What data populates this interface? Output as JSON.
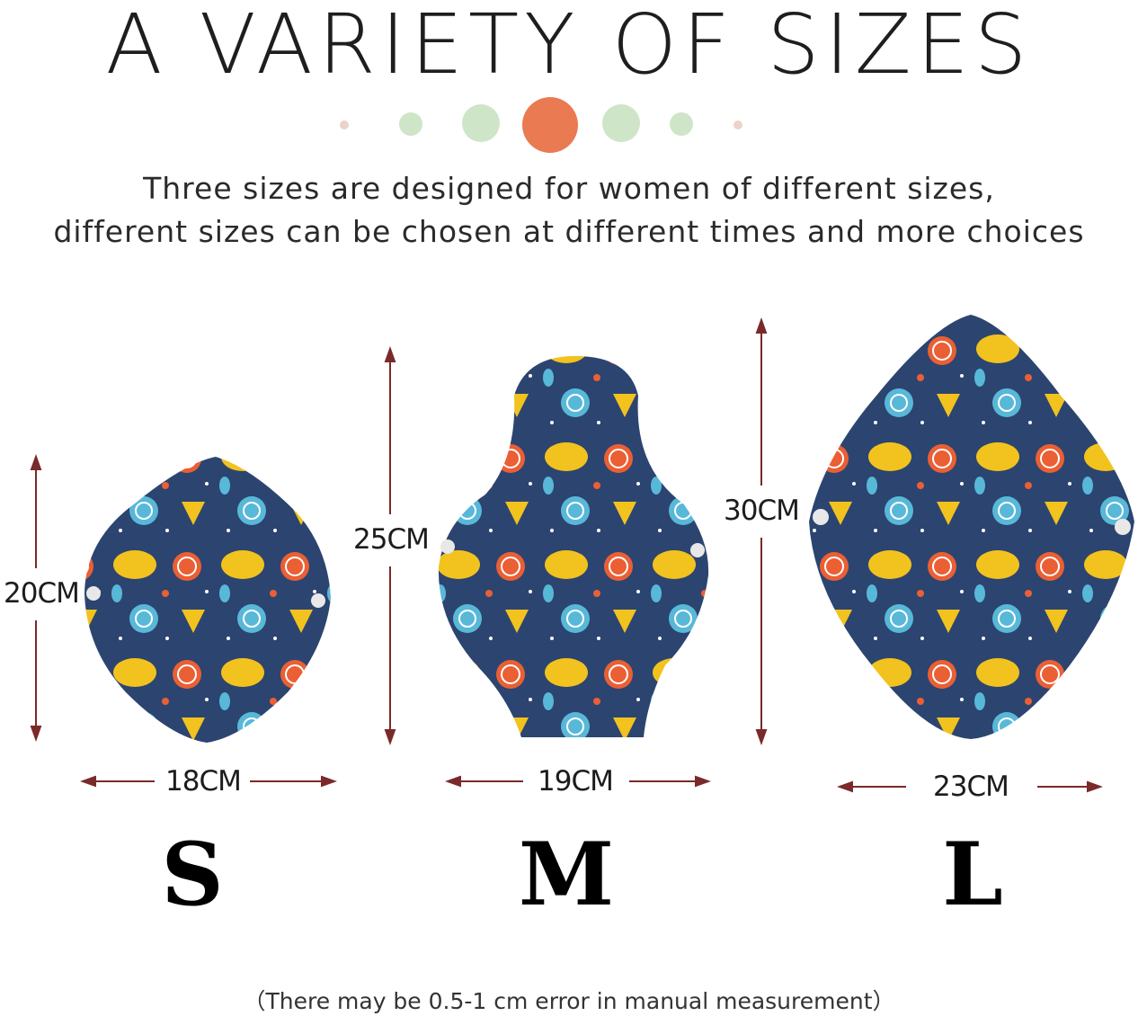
{
  "title": "A VARIETY OF SIZES",
  "subtitle": {
    "line1": "Three sizes are designed for women of different sizes,",
    "line2": "different sizes can be chosen at different times and more choices"
  },
  "sizes": [
    {
      "letter": "S",
      "height_label": "20CM",
      "width_label": "18CM"
    },
    {
      "letter": "M",
      "height_label": "25CM",
      "width_label": "19CM"
    },
    {
      "letter": "L",
      "height_label": "30CM",
      "width_label": "23CM"
    }
  ],
  "footnote": "（There may be 0.5-1 cm error in manual measurement）",
  "colors": {
    "pad_navy": "#2c4470",
    "lemon": "#f2c21e",
    "orange": "#ea5f34",
    "teal": "#58b8d8",
    "accent_dot": "#ea7a52",
    "green_dot": "#cfe5c7",
    "arrow": "#7a2a2a"
  }
}
